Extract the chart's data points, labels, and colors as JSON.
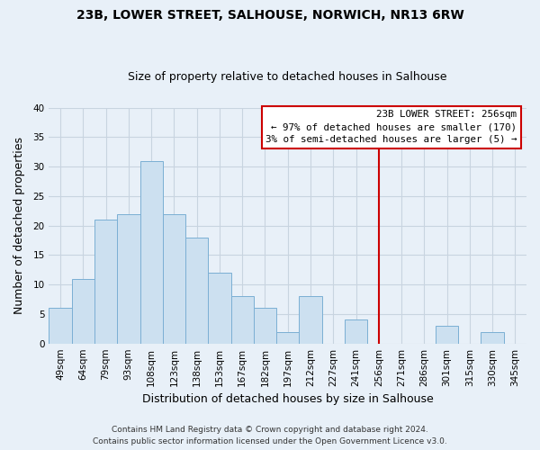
{
  "title": "23B, LOWER STREET, SALHOUSE, NORWICH, NR13 6RW",
  "subtitle": "Size of property relative to detached houses in Salhouse",
  "xlabel": "Distribution of detached houses by size in Salhouse",
  "ylabel": "Number of detached properties",
  "bar_color": "#cce0f0",
  "bar_edge_color": "#7bafd4",
  "categories": [
    "49sqm",
    "64sqm",
    "79sqm",
    "93sqm",
    "108sqm",
    "123sqm",
    "138sqm",
    "153sqm",
    "167sqm",
    "182sqm",
    "197sqm",
    "212sqm",
    "227sqm",
    "241sqm",
    "256sqm",
    "271sqm",
    "286sqm",
    "301sqm",
    "315sqm",
    "330sqm",
    "345sqm"
  ],
  "values": [
    6,
    11,
    21,
    22,
    31,
    22,
    18,
    12,
    8,
    6,
    2,
    8,
    0,
    4,
    0,
    0,
    0,
    3,
    0,
    2,
    0
  ],
  "ylim": [
    0,
    40
  ],
  "yticks": [
    0,
    5,
    10,
    15,
    20,
    25,
    30,
    35,
    40
  ],
  "property_line_index": 14,
  "property_line_label": "23B LOWER STREET: 256sqm",
  "annotation_line1": "← 97% of detached houses are smaller (170)",
  "annotation_line2": "3% of semi-detached houses are larger (5) →",
  "footer_line1": "Contains HM Land Registry data © Crown copyright and database right 2024.",
  "footer_line2": "Contains public sector information licensed under the Open Government Licence v3.0.",
  "grid_color": "#c8d4e0",
  "background_color": "#e8f0f8",
  "annotation_box_edge": "#cc0000",
  "property_vline_color": "#cc0000",
  "title_fontsize": 10,
  "subtitle_fontsize": 9,
  "axis_label_fontsize": 9,
  "tick_fontsize": 7.5,
  "footer_fontsize": 6.5
}
